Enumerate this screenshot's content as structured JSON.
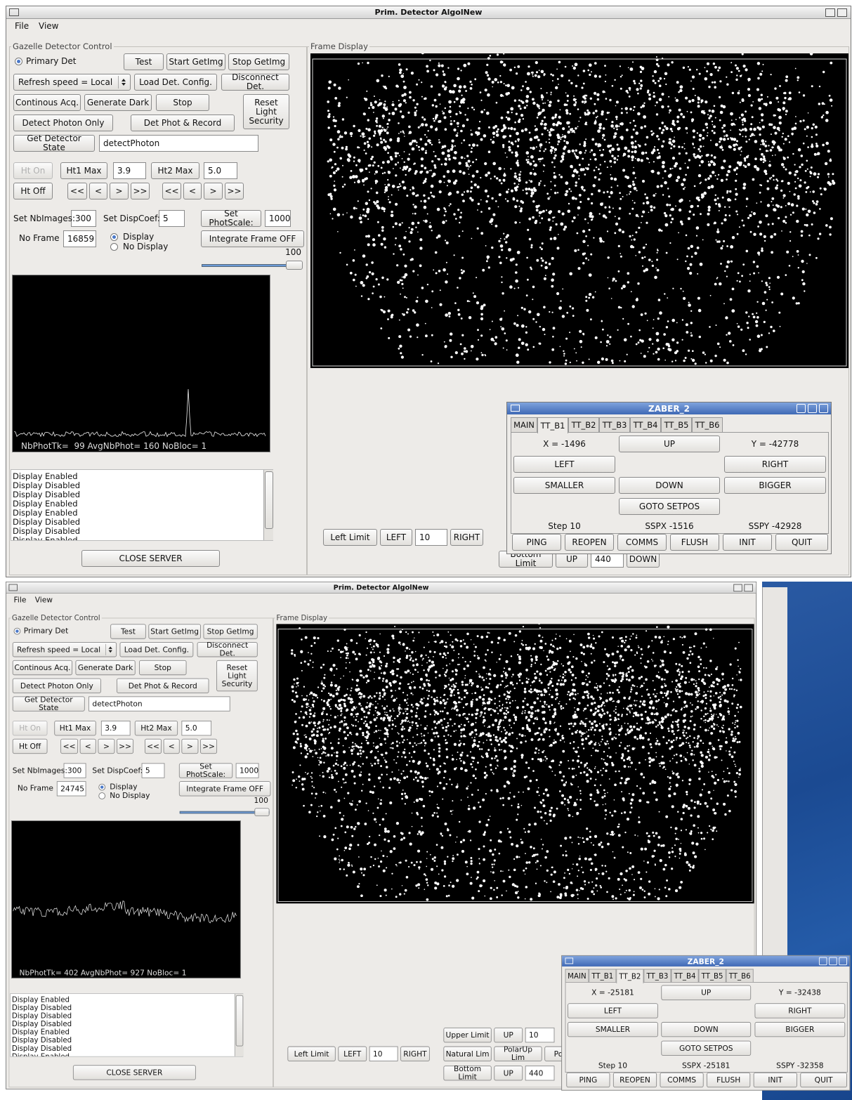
{
  "windows": [
    {
      "title": "Prim. Detector AlgolNew",
      "menu": [
        "File",
        "View"
      ],
      "control": {
        "label": "Gazelle Detector Control",
        "primary_det": "Primary Det",
        "buttons": [
          "Test",
          "Start GetImg",
          "Stop GetImg",
          "Load Det. Config.",
          "Disconnect Det.",
          "Continous Acq.",
          "Generate Dark",
          "Stop",
          "Reset Light Security",
          "Detect Photon Only",
          "Det Phot & Record",
          "Get Detector State",
          "Ht On",
          "Ht1 Max",
          "Ht2 Max",
          "Ht Off",
          "<<",
          "<",
          ">",
          ">>",
          "<<",
          "<",
          ">",
          ">>",
          "Set PhotScale:",
          "Integrate Frame OFF",
          "CLOSE SERVER"
        ],
        "fields": [
          "Refresh speed = Local",
          "detectPhoton",
          "3.9",
          "5.0",
          "300",
          "5",
          "1000",
          "16859"
        ],
        "labels": [
          "Set NbImages:",
          "Set DispCoef:",
          "No Frame"
        ],
        "display": "Display",
        "no_display": "No Display",
        "slider_max": "100",
        "histogram_caption": "NbPhotTk=  99 AvgNbPhot= 160 NoBloc= 1",
        "log": [
          "Display Enabled",
          "Display Disabled",
          "Display Disabled",
          "Display Enabled",
          "Display Enabled",
          "Display Disabled",
          "Display Disabled",
          "Display Enabled"
        ]
      },
      "frame_label": "Frame Display",
      "motion": {
        "left": [
          "Left Limit",
          "LEFT",
          "10",
          "RIGHT"
        ],
        "bottom": [
          "Bottom Limit",
          "UP",
          "440",
          "DOWN"
        ]
      },
      "zaber": {
        "title": "ZABER_2",
        "tabs": [
          "MAIN",
          "TT_B1",
          "TT_B2",
          "TT_B3",
          "TT_B4",
          "TT_B5",
          "TT_B6"
        ],
        "active_tab": 1,
        "x": "X = -1496",
        "up": "UP",
        "y": "Y = -42778",
        "left": "LEFT",
        "right": "RIGHT",
        "smaller": "SMALLER",
        "down": "DOWN",
        "bigger": "BIGGER",
        "goto": "GOTO SETPOS",
        "step": "Step 10",
        "sspx": "SSPX -1516",
        "sspy": "SSPY -42928",
        "actions": [
          "PING",
          "REOPEN",
          "COMMS",
          "FLUSH",
          "INIT",
          "QUIT"
        ]
      }
    },
    {
      "title": "Prim. Detector AlgolNew",
      "menu": [
        "File",
        "View"
      ],
      "control": {
        "label": "Gazelle Detector Control",
        "primary_det": "Primary Det",
        "buttons": [
          "Test",
          "Start GetImg",
          "Stop GetImg",
          "Load Det. Config.",
          "Disconnect Det.",
          "Continous Acq.",
          "Generate Dark",
          "Stop",
          "Reset Light Security",
          "Detect Photon Only",
          "Det Phot & Record",
          "Get Detector State",
          "Ht On",
          "Ht1 Max",
          "Ht2 Max",
          "Ht Off",
          "<<",
          "<",
          ">",
          ">>",
          "<<",
          "<",
          ">",
          ">>",
          "Set PhotScale:",
          "Integrate Frame OFF",
          "CLOSE SERVER"
        ],
        "fields": [
          "Refresh speed = Local",
          "detectPhoton",
          "3.9",
          "5.0",
          "300",
          "5",
          "1000",
          "24745"
        ],
        "labels": [
          "Set NbImages:",
          "Set DispCoef:",
          "No Frame"
        ],
        "display": "Display",
        "no_display": "No Display",
        "slider_max": "100",
        "histogram_caption": "NbPhotTk= 402 AvgNbPhot= 927 NoBloc= 1",
        "log": [
          "Display Enabled",
          "Display Disabled",
          "Display Disabled",
          "Display Disabled",
          "Display Enabled",
          "Display Disabled",
          "Display Disabled",
          "Display Enabled"
        ]
      },
      "frame_label": "Frame Display",
      "motion": {
        "left": [
          "Left Limit",
          "LEFT",
          "10",
          "RIGHT"
        ],
        "upper": [
          "Upper Limit",
          "UP",
          "10"
        ],
        "middle": [
          "Natural Lim",
          "PolarUp Lim",
          "Polar"
        ],
        "bottom": [
          "Bottom Limit",
          "UP",
          "440"
        ]
      },
      "zaber": {
        "title": "ZABER_2",
        "tabs": [
          "MAIN",
          "TT_B1",
          "TT_B2",
          "TT_B3",
          "TT_B4",
          "TT_B5",
          "TT_B6"
        ],
        "active_tab": 2,
        "x": "X = -25181",
        "up": "UP",
        "y": "Y = -32438",
        "left": "LEFT",
        "right": "RIGHT",
        "smaller": "SMALLER",
        "down": "DOWN",
        "bigger": "BIGGER",
        "goto": "GOTO SETPOS",
        "step": "Step 10",
        "sspx": "SSPX -25181",
        "sspy": "SSPY -32358",
        "actions": [
          "PING",
          "REOPEN",
          "COMMS",
          "FLUSH",
          "INIT",
          "QUIT"
        ]
      }
    }
  ]
}
